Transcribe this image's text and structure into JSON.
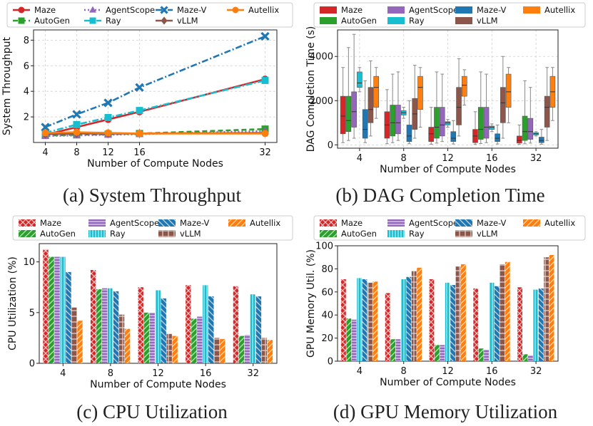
{
  "colors": {
    "Maze": "#d62728",
    "AutoGen": "#2ca02c",
    "AgentScope": "#9467bd",
    "Ray": "#17becf",
    "Maze-V": "#1f77b4",
    "vLLM": "#8c564b",
    "Autellix": "#ff7f0e"
  },
  "legend_order": [
    "Maze",
    "AutoGen",
    "AgentScope",
    "Ray",
    "Maze-V",
    "vLLM",
    "Autellix"
  ],
  "chart_data": [
    {
      "id": "a",
      "type": "line",
      "caption": "(a) System Throughput",
      "xlabel": "Number of Compute Nodes",
      "ylabel": "System Throughput",
      "x": [
        4,
        8,
        12,
        16,
        32
      ],
      "xlim": [
        2.5,
        33.5
      ],
      "ylim": [
        0,
        8.8
      ],
      "yticks": [
        2,
        4,
        6,
        8
      ],
      "grid": true,
      "legend": "top",
      "series": [
        {
          "name": "Maze",
          "marker": "circle",
          "dash": "solid",
          "values": [
            0.6,
            1.2,
            1.8,
            2.4,
            4.95
          ]
        },
        {
          "name": "AutoGen",
          "marker": "square",
          "dash": "dashed",
          "values": [
            0.55,
            0.6,
            0.65,
            0.7,
            1.05
          ]
        },
        {
          "name": "AgentScope",
          "marker": "triangle",
          "dash": "dotted",
          "values": [
            0.5,
            0.55,
            0.6,
            0.65,
            0.9
          ]
        },
        {
          "name": "Ray",
          "marker": "square",
          "dash": "dashdot",
          "values": [
            0.75,
            1.4,
            1.95,
            2.5,
            4.85
          ]
        },
        {
          "name": "Maze-V",
          "marker": "x",
          "dash": "dashdot",
          "values": [
            1.2,
            2.2,
            3.1,
            4.3,
            8.3
          ]
        },
        {
          "name": "vLLM",
          "marker": "diamond",
          "dash": "solid",
          "values": [
            0.65,
            0.7,
            0.7,
            0.7,
            0.75
          ]
        },
        {
          "name": "Autellix",
          "marker": "circle",
          "dash": "solid",
          "values": [
            0.75,
            0.8,
            0.75,
            0.7,
            0.7
          ]
        }
      ]
    },
    {
      "id": "b",
      "type": "box",
      "caption": "(b) DAG Completion Time",
      "xlabel": "Number of Compute Nodes",
      "ylabel": "DAG Completion Time (s)",
      "categories": [
        "4",
        "8",
        "12",
        "16",
        "32"
      ],
      "ylim": [
        -150,
        5200
      ],
      "yticks": [
        0,
        2000,
        4000
      ],
      "grid": true,
      "legend": "top",
      "series": [
        {
          "name": "Maze",
          "boxes": [
            [
              100,
              500,
              1300,
              2200,
              3500
            ],
            [
              50,
              300,
              900,
              1500,
              2500
            ],
            [
              30,
              150,
              500,
              800,
              1700
            ],
            [
              20,
              100,
              400,
              700,
              1500
            ],
            [
              20,
              80,
              200,
              400,
              900
            ]
          ]
        },
        {
          "name": "AutoGen",
          "boxes": [
            [
              200,
              600,
              1100,
              2200,
              4400
            ],
            [
              100,
              400,
              1000,
              1800,
              3200
            ],
            [
              80,
              300,
              800,
              1700,
              3300
            ],
            [
              60,
              250,
              700,
              1700,
              3300
            ],
            [
              50,
              200,
              600,
              1300,
              2900
            ]
          ]
        },
        {
          "name": "AgentScope",
          "boxes": [
            [
              300,
              800,
              1500,
              2400,
              5000
            ],
            [
              200,
              500,
              1000,
              1800,
              3300
            ],
            [
              150,
              400,
              900,
              1700,
              3200
            ],
            [
              100,
              300,
              800,
              1700,
              3200
            ],
            [
              80,
              250,
              600,
              1200,
              2600
            ]
          ]
        },
        {
          "name": "Ray",
          "boxes": [
            [
              2400,
              2600,
              2800,
              3300,
              3500
            ],
            [
              1200,
              1350,
              1450,
              1550,
              1700
            ],
            [
              800,
              900,
              1000,
              1050,
              1150
            ],
            [
              600,
              700,
              800,
              850,
              950
            ],
            [
              400,
              450,
              500,
              550,
              600
            ]
          ]
        },
        {
          "name": "Maze-V",
          "boxes": [
            [
              100,
              300,
              700,
              1600,
              2900
            ],
            [
              50,
              150,
              400,
              900,
              2000
            ],
            [
              40,
              150,
              300,
              600,
              1100
            ],
            [
              40,
              150,
              300,
              500,
              900
            ],
            [
              30,
              100,
              200,
              350,
              700
            ]
          ]
        },
        {
          "name": "vLLM",
          "boxes": [
            [
              400,
              1000,
              1600,
              2600,
              3800
            ],
            [
              300,
              700,
              1400,
              2100,
              3600
            ],
            [
              400,
              900,
              1700,
              2600,
              3900
            ],
            [
              300,
              1000,
              1900,
              2600,
              4000
            ],
            [
              200,
              800,
              1700,
              2200,
              3500
            ]
          ]
        },
        {
          "name": "Autellix",
          "boxes": [
            [
              1200,
              1700,
              2600,
              3100,
              3500
            ],
            [
              800,
              1600,
              2600,
              3100,
              3500
            ],
            [
              1800,
              2200,
              2700,
              3100,
              3400
            ],
            [
              1000,
              1700,
              2400,
              3200,
              3500
            ],
            [
              1100,
              1700,
              2400,
              3100,
              3500
            ]
          ]
        }
      ]
    },
    {
      "id": "c",
      "type": "bar",
      "caption": "(c) CPU Utilization",
      "xlabel": "Number of Compute Nodes",
      "ylabel": "CPU Utilization (%)",
      "categories": [
        "4",
        "8",
        "12",
        "16",
        "32"
      ],
      "ylim": [
        0,
        11.8
      ],
      "yticks": [
        0,
        5,
        10
      ],
      "legend": "top",
      "series": [
        {
          "name": "Maze",
          "values": [
            11.2,
            9.2,
            7.5,
            7.7,
            7.6
          ]
        },
        {
          "name": "AutoGen",
          "values": [
            10.5,
            7.3,
            5.0,
            4.4,
            2.7
          ]
        },
        {
          "name": "AgentScope",
          "values": [
            10.5,
            7.4,
            5.0,
            4.6,
            2.8
          ]
        },
        {
          "name": "Ray",
          "values": [
            10.5,
            7.4,
            7.2,
            7.7,
            6.8
          ]
        },
        {
          "name": "Maze-V",
          "values": [
            9.0,
            7.1,
            6.4,
            6.6,
            6.6
          ]
        },
        {
          "name": "vLLM",
          "values": [
            5.5,
            4.8,
            2.9,
            2.5,
            2.5
          ]
        },
        {
          "name": "Autellix",
          "values": [
            4.2,
            3.4,
            2.7,
            2.4,
            2.3
          ]
        }
      ]
    },
    {
      "id": "d",
      "type": "bar",
      "caption": "(d) GPU Memory Utilization",
      "xlabel": "Number of Compute Nodes",
      "ylabel": "GPU Memory Util. (%)",
      "categories": [
        "4",
        "8",
        "12",
        "16",
        "32"
      ],
      "ylim": [
        0,
        100
      ],
      "yticks": [
        0,
        20,
        40,
        60,
        80,
        100
      ],
      "legend": "top",
      "series": [
        {
          "name": "Maze",
          "values": [
            71,
            59,
            71,
            63,
            64
          ]
        },
        {
          "name": "AutoGen",
          "values": [
            37,
            19,
            14,
            11,
            6
          ]
        },
        {
          "name": "AgentScope",
          "values": [
            36,
            19,
            14,
            10,
            5
          ]
        },
        {
          "name": "Ray",
          "values": [
            72,
            71,
            68,
            68,
            62
          ]
        },
        {
          "name": "Maze-V",
          "values": [
            71,
            73,
            66,
            65,
            63
          ]
        },
        {
          "name": "vLLM",
          "values": [
            68,
            78,
            82,
            84,
            90
          ]
        },
        {
          "name": "Autellix",
          "values": [
            69,
            81,
            84,
            86,
            92
          ]
        }
      ]
    }
  ]
}
